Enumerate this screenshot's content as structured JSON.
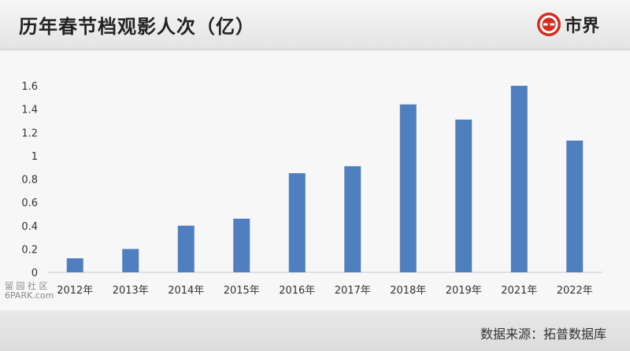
{
  "header": {
    "title": "历年春节档观影人次（亿）",
    "brand": "市界"
  },
  "footer": {
    "source": "数据来源：拓普数据库"
  },
  "watermark": {
    "site_line1": "留 园 社 区",
    "site_line2": "6PARK.com"
  },
  "colors": {
    "bar": "#4f7fbe",
    "axis": "#c8c8c8",
    "brand": "#d52b1e"
  },
  "chart_data": {
    "type": "bar",
    "categories": [
      "2012年",
      "2013年",
      "2014年",
      "2015年",
      "2016年",
      "2017年",
      "2018年",
      "2019年",
      "2021年",
      "2022年"
    ],
    "values": [
      0.12,
      0.2,
      0.4,
      0.46,
      0.85,
      0.91,
      1.44,
      1.31,
      1.6,
      1.13
    ],
    "ylim": [
      0,
      1.6
    ],
    "yticks": [
      "0",
      "0.2",
      "0.4",
      "0.6",
      "0.8",
      "1",
      "1.2",
      "1.4",
      "1.6"
    ],
    "grid": false
  }
}
